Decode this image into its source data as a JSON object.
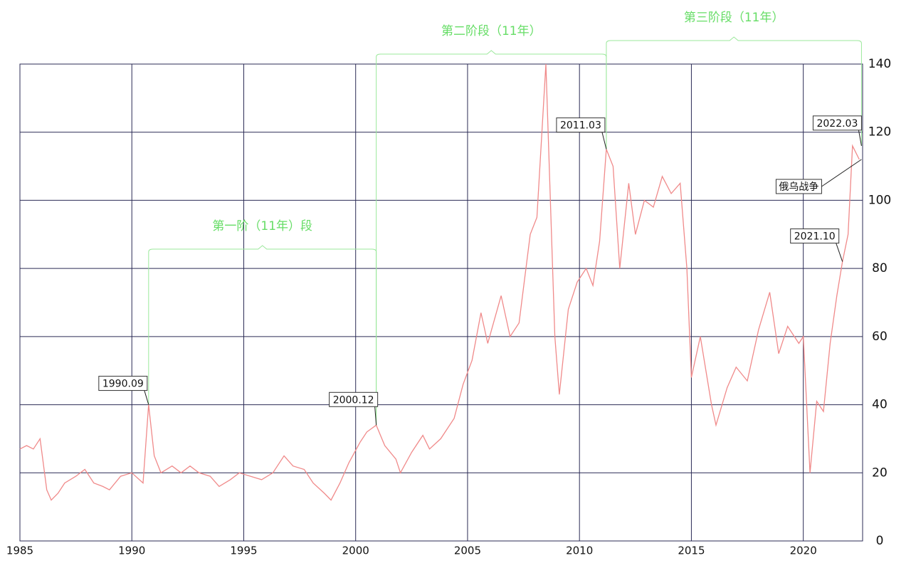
{
  "chart_data": {
    "type": "line",
    "x": [
      1985.0,
      1985.3,
      1985.6,
      1985.9,
      1986.2,
      1986.4,
      1986.7,
      1987.0,
      1987.5,
      1987.9,
      1988.3,
      1988.7,
      1989.0,
      1989.5,
      1990.0,
      1990.5,
      1990.75,
      1991.0,
      1991.3,
      1991.8,
      1992.2,
      1992.6,
      1993.0,
      1993.5,
      1993.9,
      1994.4,
      1994.8,
      1995.3,
      1995.8,
      1996.3,
      1996.8,
      1997.2,
      1997.7,
      1998.1,
      1998.6,
      1998.9,
      1999.3,
      1999.7,
      2000.2,
      2000.5,
      2000.92,
      2001.3,
      2001.8,
      2002.0,
      2002.5,
      2003.0,
      2003.3,
      2003.8,
      2004.4,
      2004.8,
      2005.2,
      2005.6,
      2005.9,
      2006.5,
      2006.9,
      2007.3,
      2007.8,
      2008.1,
      2008.5,
      2008.9,
      2009.1,
      2009.5,
      2009.9,
      2010.3,
      2010.6,
      2010.9,
      2011.2,
      2011.5,
      2011.8,
      2012.2,
      2012.5,
      2012.9,
      2013.3,
      2013.7,
      2014.1,
      2014.5,
      2014.8,
      2015.0,
      2015.4,
      2015.9,
      2016.1,
      2016.6,
      2017.0,
      2017.5,
      2018.0,
      2018.5,
      2018.9,
      2019.3,
      2019.8,
      2020.0,
      2020.3,
      2020.6,
      2020.9,
      2021.2,
      2021.5,
      2021.75,
      2022.0,
      2022.2,
      2022.5
    ],
    "series": [
      {
        "color": "#f08a8a",
        "values": [
          27,
          28,
          27,
          30,
          15,
          12,
          14,
          17,
          19,
          21,
          17,
          16,
          15,
          19,
          20,
          17,
          40,
          25,
          20,
          22,
          20,
          22,
          20,
          19,
          16,
          18,
          20,
          19,
          18,
          20,
          25,
          22,
          21,
          17,
          14,
          12,
          17,
          23,
          29,
          32,
          34,
          28,
          24,
          20,
          26,
          31,
          27,
          30,
          36,
          46,
          53,
          67,
          58,
          72,
          60,
          64,
          90,
          95,
          140,
          60,
          43,
          68,
          76,
          80,
          75,
          88,
          115,
          110,
          80,
          105,
          90,
          100,
          98,
          107,
          102,
          105,
          80,
          48,
          60,
          40,
          34,
          45,
          51,
          47,
          62,
          73,
          55,
          63,
          58,
          60,
          20,
          41,
          38,
          58,
          72,
          82,
          90,
          116,
          112
        ]
      }
    ],
    "xlim": [
      1985,
      2022.65
    ],
    "ylim": [
      0,
      140
    ],
    "xticks": [
      1985,
      1990,
      1995,
      2000,
      2005,
      2010,
      2015,
      2020
    ],
    "yticks": [
      0,
      20,
      40,
      60,
      80,
      100,
      120,
      140
    ],
    "grid": true,
    "annotations": [
      {
        "text": "1990.09",
        "x": 1990.75,
        "y": 40
      },
      {
        "text": "2000.12",
        "x": 2000.92,
        "y": 34
      },
      {
        "text": "2011.03",
        "x": 2011.2,
        "y": 115
      },
      {
        "text": "2022.03",
        "x": 2022.6,
        "y": 116
      },
      {
        "text": "2021.10",
        "x": 2021.75,
        "y": 82
      },
      {
        "text": "俄乌战争",
        "x": 2022.6,
        "y": 112
      }
    ],
    "stages": [
      {
        "label": "第一阶（11年）段",
        "start": 1990.75,
        "end": 2000.92
      },
      {
        "label": "第二阶段（11年）",
        "start": 2000.92,
        "end": 2011.2
      },
      {
        "label": "第三阶段（11年）",
        "start": 2011.2,
        "end": 2022.6
      }
    ]
  }
}
